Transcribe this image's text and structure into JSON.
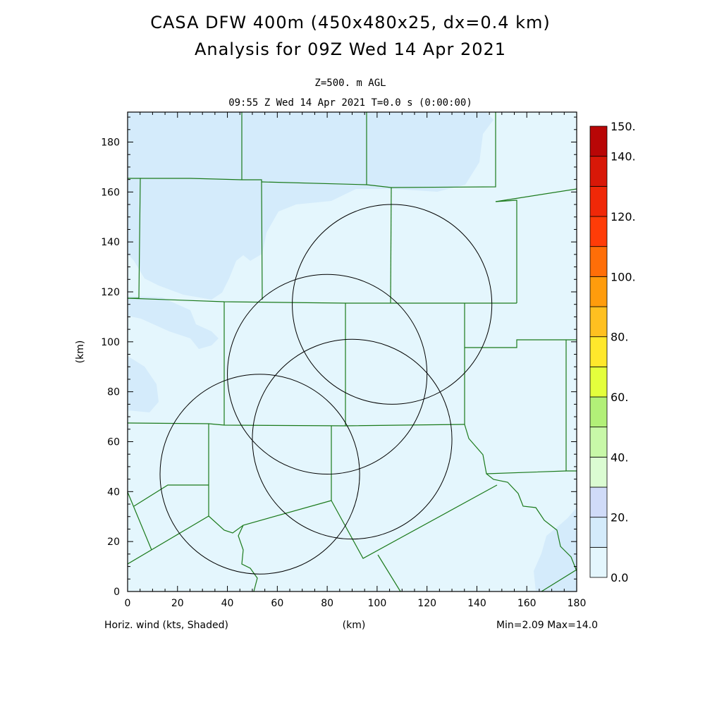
{
  "title_line1": "CASA DFW 400m (450x480x25, dx=0.4 km)",
  "title_line2": "Analysis for 09Z Wed 14 Apr 2021",
  "level_label": "Z=500. m AGL",
  "time_label": "09:55 Z Wed 14 Apr 2021   T=0.0 s (0:00:00)",
  "footer": {
    "field_label": "Horiz. wind (kts, Shaded)",
    "x_unit": "(km)",
    "minmax": "Min=2.09 Max=14.0"
  },
  "y_axis_label": "(km)",
  "chart_data": {
    "type": "heatmap",
    "field": "Horiz. wind (kts, Shaded)",
    "xlim": [
      0,
      180
    ],
    "ylim": [
      0,
      192
    ],
    "x_ticks": [
      "0",
      "20",
      "40",
      "60",
      "80",
      "100",
      "120",
      "140",
      "160",
      "180"
    ],
    "y_ticks": [
      "0",
      "20",
      "40",
      "60",
      "80",
      "100",
      "120",
      "140",
      "160",
      "180"
    ],
    "min": 2.09,
    "max": 14.0,
    "radar_circles_km": [
      {
        "cx": 53,
        "cy": 47,
        "r": 40
      },
      {
        "cx": 80,
        "cy": 87,
        "r": 40
      },
      {
        "cx": 106,
        "cy": 115,
        "r": 40
      },
      {
        "cx": 90,
        "cy": 61,
        "r": 40
      }
    ],
    "colorbar": {
      "labels": [
        "0.0",
        "20.",
        "40.",
        "60.",
        "80.",
        "100.",
        "120.",
        "140.",
        "150."
      ],
      "label_values": [
        0,
        20,
        40,
        60,
        80,
        100,
        120,
        140,
        150
      ],
      "vmin": 0,
      "vmax": 150,
      "levels": [
        {
          "from": 0,
          "to": 10,
          "color": "#e4f6fd"
        },
        {
          "from": 10,
          "to": 20,
          "color": "#d4ebfb"
        },
        {
          "from": 20,
          "to": 30,
          "color": "#d0dbf8"
        },
        {
          "from": 30,
          "to": 40,
          "color": "#dbfcd2"
        },
        {
          "from": 40,
          "to": 50,
          "color": "#c8f8a8"
        },
        {
          "from": 50,
          "to": 60,
          "color": "#b2f078"
        },
        {
          "from": 60,
          "to": 70,
          "color": "#e4ff3c"
        },
        {
          "from": 70,
          "to": 80,
          "color": "#ffe82c"
        },
        {
          "from": 80,
          "to": 90,
          "color": "#ffc020"
        },
        {
          "from": 90,
          "to": 100,
          "color": "#ff9c0c"
        },
        {
          "from": 100,
          "to": 110,
          "color": "#ff6e08"
        },
        {
          "from": 110,
          "to": 120,
          "color": "#ff3c08"
        },
        {
          "from": 120,
          "to": 130,
          "color": "#f02808"
        },
        {
          "from": 130,
          "to": 140,
          "color": "#d81808"
        },
        {
          "from": 140,
          "to": 150,
          "color": "#b80606"
        }
      ]
    },
    "background_color": "#e4f6fd",
    "shade_color": "#d4ebfb",
    "boundary_color": "#1b7a1b"
  }
}
